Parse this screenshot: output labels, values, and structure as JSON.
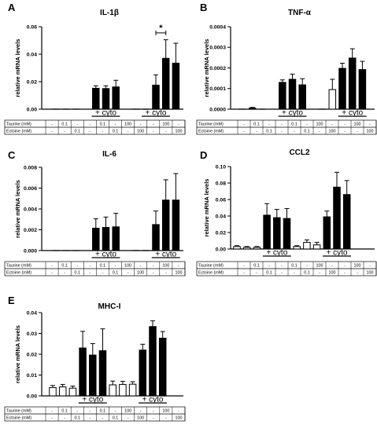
{
  "rows": [
    "Taurine (mM)",
    "Ectoine (mM)"
  ],
  "row_cells": [
    [
      "-",
      "0.1",
      "-",
      "-",
      "0.1",
      "-",
      "100",
      "-",
      "-",
      "100",
      "-"
    ],
    [
      "-",
      "-",
      "0.1",
      "-",
      "-",
      "0.1",
      "-",
      "100",
      "-",
      "-",
      "100"
    ]
  ],
  "cyto_label": "+ cyto",
  "chart_data": [
    {
      "panel": "A",
      "type": "bar",
      "title": "IL-1β",
      "ylabel": "relative mRNA levels",
      "ylim": [
        0,
        0.06
      ],
      "yticks": [
        "0.00",
        "0.02",
        "0.04",
        "0.06"
      ],
      "values": [
        0,
        0,
        0,
        0.0152,
        0.015,
        0.0162,
        0,
        0,
        0.0175,
        0.037,
        0.0335
      ],
      "errors": [
        0,
        0,
        0,
        0.0018,
        0.002,
        0.0048,
        0,
        0,
        0.0075,
        0.0135,
        0.0145
      ],
      "filled": [
        true,
        true,
        true,
        true,
        true,
        true,
        true,
        true,
        true,
        true,
        true
      ],
      "significance": {
        "from": 8,
        "to": 9,
        "label": "*",
        "y": 0.0555
      }
    },
    {
      "panel": "B",
      "type": "bar",
      "title": "TNF-α",
      "ylabel": "relative mRNA levels",
      "ylim": [
        0,
        0.0004
      ],
      "yticks": [
        "0.0000",
        "0.0001",
        "0.0002",
        "0.0003",
        "0.0004"
      ],
      "values": [
        0,
        5e-06,
        0,
        0.00013,
        0.000145,
        0.000118,
        0,
        9.5e-05,
        0.000198,
        0.000248,
        0.000192
      ],
      "errors": [
        0,
        4e-06,
        0,
        1.2e-05,
        2.5e-05,
        3e-05,
        0,
        5e-05,
        2.5e-05,
        4.5e-05,
        4e-05
      ],
      "filled": [
        true,
        true,
        true,
        true,
        true,
        true,
        true,
        false,
        true,
        true,
        true
      ]
    },
    {
      "panel": "C",
      "type": "bar",
      "title": "IL-6",
      "ylabel": "relative mRNA levels",
      "ylim": [
        0,
        0.008
      ],
      "yticks": [
        "0.000",
        "0.002",
        "0.004",
        "0.006",
        "0.008"
      ],
      "values": [
        0,
        0,
        0,
        0.00215,
        0.00222,
        0.00228,
        0,
        0,
        0.0025,
        0.00485,
        0.00485
      ],
      "errors": [
        0,
        0,
        0,
        0.0009,
        0.001,
        0.0013,
        0,
        0,
        0.0013,
        0.00195,
        0.00255
      ],
      "filled": [
        true,
        true,
        true,
        true,
        true,
        true,
        true,
        true,
        true,
        true,
        true
      ]
    },
    {
      "panel": "D",
      "type": "bar",
      "title": "CCL2",
      "ylabel": "relative mRNA levels",
      "ylim": [
        0,
        0.1
      ],
      "yticks": [
        "0.00",
        "0.02",
        "0.04",
        "0.06",
        "0.08",
        "0.10"
      ],
      "values": [
        0.003,
        0.002,
        0.002,
        0.041,
        0.038,
        0.037,
        0.003,
        0.008,
        0.005,
        0.039,
        0.075,
        0.066
      ],
      "errors": [
        0.001,
        0.001,
        0.001,
        0.014,
        0.01,
        0.012,
        0.001,
        0.003,
        0.003,
        0.007,
        0.018,
        0.017
      ],
      "filled": [
        false,
        false,
        false,
        true,
        true,
        true,
        false,
        false,
        false,
        true,
        true,
        true
      ]
    },
    {
      "panel": "E",
      "type": "bar",
      "title": "MHC-I",
      "ylabel": "relative mRNA levels",
      "ylim": [
        0,
        0.04
      ],
      "yticks": [
        "0.00",
        "0.01",
        "0.02",
        "0.03",
        "0.04"
      ],
      "values": [
        0.004,
        0.0043,
        0.0037,
        0.023,
        0.0196,
        0.0217,
        0.0053,
        0.0055,
        0.0056,
        0.022,
        0.0333,
        0.0277
      ],
      "errors": [
        0.001,
        0.0012,
        0.001,
        0.008,
        0.0055,
        0.0105,
        0.0018,
        0.0015,
        0.0012,
        0.0028,
        0.0028,
        0.0032
      ],
      "filled": [
        false,
        false,
        false,
        true,
        true,
        true,
        false,
        false,
        false,
        true,
        true,
        true
      ]
    }
  ]
}
